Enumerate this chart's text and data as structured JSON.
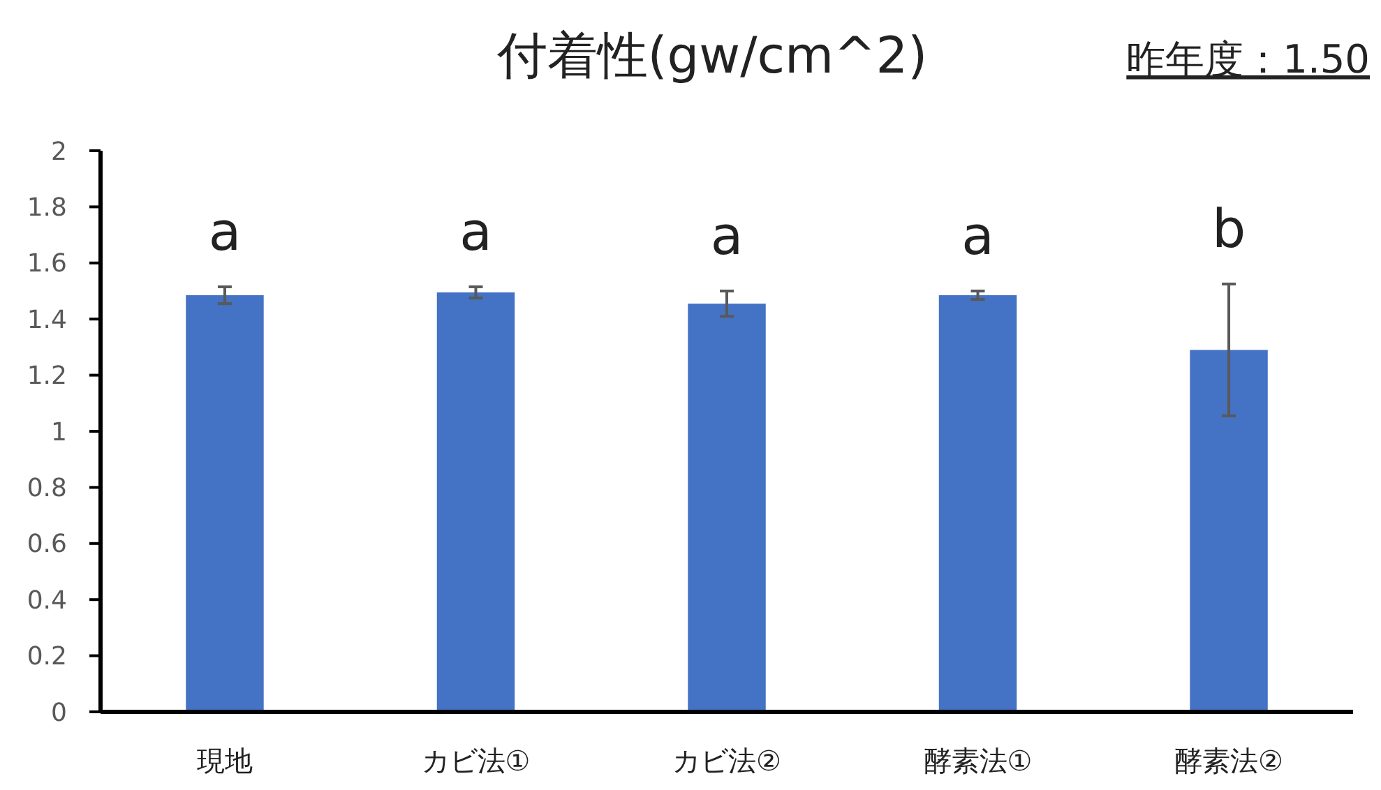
{
  "chart_data": {
    "type": "bar",
    "title": "付着性(gw/cm^2)",
    "categories": [
      "現地",
      "カビ法①",
      "カビ法②",
      "酵素法①",
      "酵素法②"
    ],
    "values": [
      1.485,
      1.495,
      1.455,
      1.485,
      1.29
    ],
    "errors": [
      0.03,
      0.02,
      0.045,
      0.015,
      0.235
    ],
    "color": "#4472c4",
    "ylim": [
      0,
      2
    ],
    "yticks": [
      0,
      0.2,
      0.4,
      0.6,
      0.8,
      1,
      1.2,
      1.4,
      1.6,
      1.8,
      2
    ],
    "grid": false,
    "annotations": [
      "a",
      "a",
      "a",
      "a",
      "b",
      "昨年度：1.50"
    ]
  }
}
